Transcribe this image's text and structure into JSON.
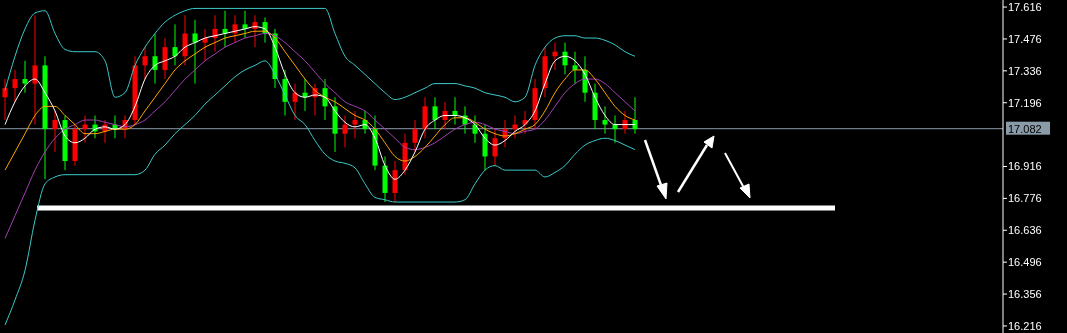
{
  "chart_data": {
    "type": "candlestick",
    "categories": [
      null,
      null,
      null,
      null,
      null,
      null,
      null,
      null,
      null,
      null,
      null,
      null,
      null,
      null,
      null,
      null,
      null,
      null,
      null,
      null,
      null,
      null,
      null,
      null,
      null,
      null,
      null,
      null,
      null,
      null,
      null,
      null,
      null,
      null,
      null,
      null,
      null,
      null,
      null,
      null,
      null,
      null,
      null,
      null,
      null,
      null,
      null,
      null,
      null,
      null,
      null,
      null,
      null,
      null,
      null,
      null,
      null,
      null,
      null,
      null,
      null,
      null,
      null,
      null
    ],
    "ohlc": [
      [
        17.22,
        17.3,
        17.12,
        17.26
      ],
      [
        17.26,
        17.34,
        17.2,
        17.3
      ],
      [
        17.3,
        17.38,
        17.24,
        17.28
      ],
      [
        17.28,
        17.58,
        17.1,
        17.36
      ],
      [
        17.36,
        17.4,
        16.86,
        17.08
      ],
      [
        17.08,
        17.16,
        16.98,
        17.12
      ],
      [
        17.12,
        17.14,
        16.9,
        16.94
      ],
      [
        16.94,
        17.1,
        16.92,
        17.08
      ],
      [
        17.08,
        17.14,
        17.02,
        17.1
      ],
      [
        17.1,
        17.14,
        17.04,
        17.07
      ],
      [
        17.07,
        17.12,
        17.02,
        17.1
      ],
      [
        17.1,
        17.14,
        17.04,
        17.08
      ],
      [
        17.08,
        17.14,
        17.04,
        17.12
      ],
      [
        17.12,
        17.4,
        17.1,
        17.36
      ],
      [
        17.36,
        17.44,
        17.3,
        17.4
      ],
      [
        17.4,
        17.5,
        17.28,
        17.34
      ],
      [
        17.34,
        17.48,
        17.3,
        17.44
      ],
      [
        17.44,
        17.54,
        17.36,
        17.4
      ],
      [
        17.4,
        17.58,
        17.36,
        17.5
      ],
      [
        17.5,
        17.56,
        17.28,
        17.46
      ],
      [
        17.46,
        17.52,
        17.38,
        17.48
      ],
      [
        17.48,
        17.58,
        17.42,
        17.52
      ],
      [
        17.52,
        17.6,
        17.44,
        17.5
      ],
      [
        17.5,
        17.58,
        17.46,
        17.54
      ],
      [
        17.54,
        17.6,
        17.48,
        17.52
      ],
      [
        17.52,
        17.58,
        17.44,
        17.55
      ],
      [
        17.55,
        17.57,
        17.46,
        17.5
      ],
      [
        17.5,
        17.52,
        17.26,
        17.3
      ],
      [
        17.3,
        17.34,
        17.14,
        17.2
      ],
      [
        17.2,
        17.28,
        17.12,
        17.24
      ],
      [
        17.24,
        17.3,
        17.16,
        17.22
      ],
      [
        17.22,
        17.28,
        17.14,
        17.26
      ],
      [
        17.26,
        17.3,
        17.12,
        17.18
      ],
      [
        17.18,
        17.22,
        16.98,
        17.06
      ],
      [
        17.06,
        17.14,
        17.0,
        17.1
      ],
      [
        17.1,
        17.16,
        17.04,
        17.12
      ],
      [
        17.12,
        17.16,
        17.06,
        17.08
      ],
      [
        17.08,
        17.14,
        16.9,
        16.92
      ],
      [
        16.92,
        16.96,
        16.76,
        16.8
      ],
      [
        16.8,
        16.94,
        16.76,
        16.9
      ],
      [
        16.9,
        17.06,
        16.88,
        17.02
      ],
      [
        17.02,
        17.12,
        16.98,
        17.08
      ],
      [
        17.08,
        17.22,
        17.04,
        17.18
      ],
      [
        17.18,
        17.22,
        17.08,
        17.12
      ],
      [
        17.12,
        17.2,
        17.08,
        17.16
      ],
      [
        17.16,
        17.22,
        17.1,
        17.14
      ],
      [
        17.14,
        17.18,
        17.06,
        17.1
      ],
      [
        17.1,
        17.14,
        17.02,
        17.06
      ],
      [
        17.06,
        17.1,
        16.9,
        16.96
      ],
      [
        16.96,
        17.08,
        16.92,
        17.04
      ],
      [
        17.04,
        17.12,
        17.0,
        17.08
      ],
      [
        17.08,
        17.14,
        17.04,
        17.1
      ],
      [
        17.1,
        17.16,
        17.06,
        17.12
      ],
      [
        17.12,
        17.3,
        17.08,
        17.26
      ],
      [
        17.26,
        17.44,
        17.22,
        17.4
      ],
      [
        17.4,
        17.46,
        17.34,
        17.42
      ],
      [
        17.42,
        17.46,
        17.32,
        17.36
      ],
      [
        17.36,
        17.42,
        17.28,
        17.34
      ],
      [
        17.34,
        17.4,
        17.2,
        17.24
      ],
      [
        17.24,
        17.28,
        17.08,
        17.12
      ],
      [
        17.12,
        17.18,
        17.06,
        17.1
      ],
      [
        17.1,
        17.14,
        17.02,
        17.08
      ],
      [
        17.08,
        17.16,
        17.06,
        17.12
      ],
      [
        17.12,
        17.22,
        17.06,
        17.08
      ]
    ],
    "colors": [
      "#ff0000",
      "#ff0000",
      "#00ff00",
      "#ff0000",
      "#00ff00",
      "#ff0000",
      "#00ff00",
      "#ff0000",
      "#ff0000",
      "#00ff00",
      "#ff0000",
      "#00ff00",
      "#ff0000",
      "#ff0000",
      "#ff0000",
      "#00ff00",
      "#ff0000",
      "#00ff00",
      "#ff0000",
      "#00ff00",
      "#ff0000",
      "#ff0000",
      "#00ff00",
      "#ff0000",
      "#00ff00",
      "#ff0000",
      "#00ff00",
      "#00ff00",
      "#00ff00",
      "#ff0000",
      "#00ff00",
      "#ff0000",
      "#00ff00",
      "#00ff00",
      "#ff0000",
      "#ff0000",
      "#00ff00",
      "#00ff00",
      "#00ff00",
      "#ff0000",
      "#ff0000",
      "#ff0000",
      "#ff0000",
      "#00ff00",
      "#ff0000",
      "#00ff00",
      "#00ff00",
      "#00ff00",
      "#00ff00",
      "#ff0000",
      "#ff0000",
      "#ff0000",
      "#ff0000",
      "#ff0000",
      "#ff0000",
      "#ff0000",
      "#00ff00",
      "#00ff00",
      "#00ff00",
      "#00ff00",
      "#00ff00",
      "#00ff00",
      "#ff0000",
      "#00ff00"
    ],
    "series": [
      {
        "type": "line",
        "color": "#3cc8c8",
        "values": [
          17.25,
          17.4,
          17.52,
          17.59,
          17.6,
          17.5,
          17.43,
          17.42,
          17.42,
          17.42,
          17.38,
          17.22,
          17.24,
          17.36,
          17.44,
          17.5,
          17.55,
          17.58,
          17.6,
          17.61,
          17.61,
          17.61,
          17.61,
          17.61,
          17.61,
          17.61,
          17.61,
          17.61,
          17.61,
          17.61,
          17.61,
          17.61,
          17.61,
          17.5,
          17.4,
          17.36,
          17.32,
          17.28,
          17.24,
          17.21,
          17.22,
          17.24,
          17.26,
          17.28,
          17.28,
          17.28,
          17.27,
          17.26,
          17.24,
          17.23,
          17.22,
          17.2,
          17.22,
          17.36,
          17.44,
          17.48,
          17.49,
          17.49,
          17.48,
          17.48,
          17.47,
          17.45,
          17.42,
          17.4
        ]
      },
      {
        "type": "line",
        "color": "#3cc8c8",
        "values": [
          16.22,
          16.33,
          16.46,
          16.68,
          16.84,
          16.87,
          16.88,
          16.88,
          16.88,
          16.88,
          16.88,
          16.88,
          16.88,
          16.88,
          16.9,
          16.97,
          17.01,
          17.06,
          17.1,
          17.14,
          17.19,
          17.23,
          17.27,
          17.31,
          17.34,
          17.36,
          17.38,
          17.32,
          17.23,
          17.14,
          17.1,
          17.03,
          16.97,
          16.94,
          16.93,
          16.91,
          16.84,
          16.78,
          16.77,
          16.76,
          16.76,
          16.76,
          16.76,
          16.76,
          16.76,
          16.76,
          16.77,
          16.84,
          16.9,
          16.92,
          16.9,
          16.9,
          16.9,
          16.9,
          16.87,
          16.89,
          16.92,
          16.97,
          17.01,
          17.03,
          17.04,
          17.03,
          17.01,
          16.99
        ]
      },
      {
        "type": "line",
        "color": "#a040b0",
        "values": [
          16.6,
          16.7,
          16.8,
          16.9,
          16.98,
          17.04,
          17.08,
          17.1,
          17.12,
          17.12,
          17.11,
          17.1,
          17.09,
          17.1,
          17.12,
          17.16,
          17.2,
          17.25,
          17.3,
          17.34,
          17.38,
          17.41,
          17.44,
          17.46,
          17.48,
          17.49,
          17.5,
          17.49,
          17.46,
          17.42,
          17.38,
          17.33,
          17.28,
          17.24,
          17.2,
          17.18,
          17.16,
          17.12,
          17.08,
          17.04,
          17.0,
          16.99,
          17.0,
          17.02,
          17.05,
          17.08,
          17.1,
          17.11,
          17.1,
          17.08,
          17.07,
          17.06,
          17.07,
          17.08,
          17.12,
          17.18,
          17.24,
          17.28,
          17.3,
          17.3,
          17.28,
          17.24,
          17.2,
          17.16
        ]
      },
      {
        "type": "line",
        "color": "#ffa500",
        "values": [
          16.9,
          16.98,
          17.06,
          17.14,
          17.18,
          17.18,
          17.14,
          17.1,
          17.06,
          17.06,
          17.07,
          17.08,
          17.08,
          17.1,
          17.16,
          17.22,
          17.28,
          17.34,
          17.38,
          17.41,
          17.44,
          17.46,
          17.48,
          17.49,
          17.5,
          17.51,
          17.51,
          17.48,
          17.42,
          17.36,
          17.3,
          17.25,
          17.22,
          17.2,
          17.17,
          17.14,
          17.12,
          17.08,
          17.02,
          16.96,
          16.94,
          16.96,
          17.0,
          17.05,
          17.1,
          17.13,
          17.13,
          17.11,
          17.08,
          17.06,
          17.05,
          17.06,
          17.08,
          17.1,
          17.16,
          17.24,
          17.3,
          17.34,
          17.34,
          17.3,
          17.24,
          17.18,
          17.14,
          17.12
        ]
      },
      {
        "type": "line",
        "color": "#ffffff",
        "values": [
          17.1,
          17.2,
          17.27,
          17.3,
          17.24,
          17.16,
          17.05,
          17.02,
          17.04,
          17.08,
          17.09,
          17.08,
          17.1,
          17.18,
          17.3,
          17.36,
          17.38,
          17.4,
          17.44,
          17.46,
          17.48,
          17.49,
          17.5,
          17.51,
          17.52,
          17.53,
          17.52,
          17.44,
          17.32,
          17.24,
          17.22,
          17.23,
          17.22,
          17.16,
          17.11,
          17.09,
          17.1,
          17.04,
          16.92,
          16.86,
          16.9,
          16.98,
          17.08,
          17.12,
          17.14,
          17.14,
          17.13,
          17.1,
          17.04,
          17.01,
          17.03,
          17.07,
          17.1,
          17.16,
          17.28,
          17.38,
          17.4,
          17.38,
          17.32,
          17.22,
          17.14,
          17.1,
          17.1,
          17.1
        ]
      }
    ],
    "ylim": [
      16.185,
      17.647
    ],
    "yticks": [
      17.616,
      17.476,
      17.336,
      17.196,
      16.916,
      16.776,
      16.636,
      16.496,
      16.356,
      16.216
    ],
    "ref_lines": [
      {
        "axis": "y",
        "value": 17.082,
        "label": "17.082",
        "color": "#8a9ba8"
      },
      {
        "axis": "y",
        "value": 16.734,
        "color": "#ffffff"
      }
    ],
    "grid": false
  }
}
